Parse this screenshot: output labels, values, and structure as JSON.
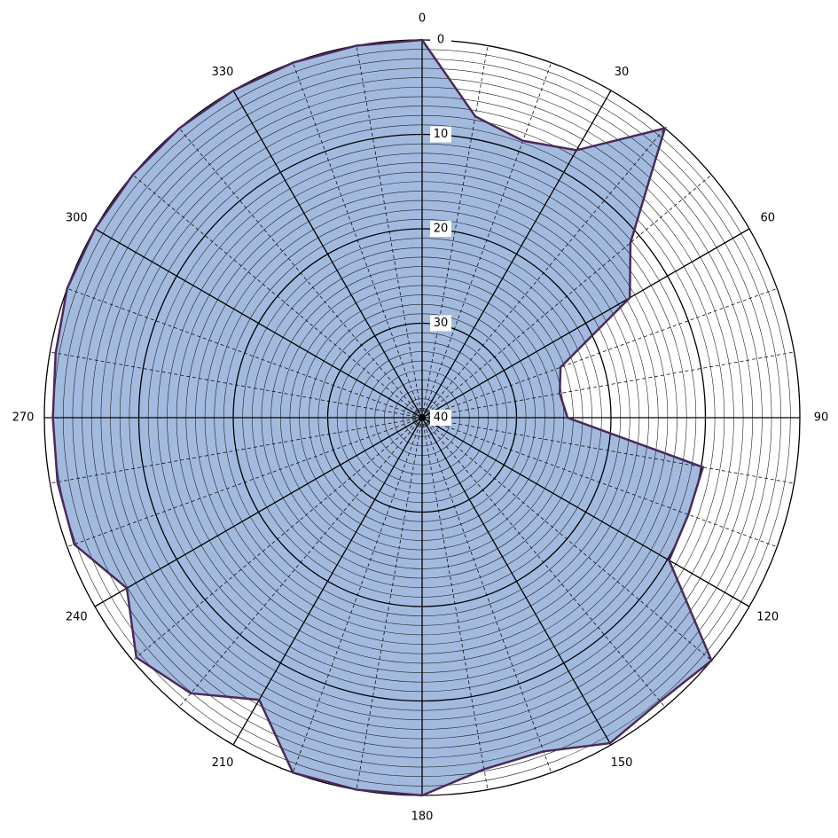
{
  "chart_data": {
    "type": "polar",
    "x": [
      0,
      10,
      20,
      30,
      40,
      50,
      60,
      70,
      80,
      90,
      100,
      110,
      120,
      130,
      140,
      150,
      160,
      170,
      180,
      190,
      200,
      210,
      220,
      230,
      240,
      250,
      260,
      270,
      280,
      290,
      300,
      310,
      320,
      330,
      340,
      350
    ],
    "series": [
      {
        "color": "#a3badf",
        "values": [
          0,
          7.6,
          8.8,
          7.3,
          0,
          11.2,
          14.6,
          24.4,
          25.2,
          24.6,
          9.8,
          10,
          9.8,
          0,
          0.8,
          0.2,
          2.4,
          2.2,
          0,
          0,
          0,
          5.5,
          1.9,
          0.5,
          3.9,
          0.8,
          0.8,
          0.9,
          0.6,
          0,
          0,
          0,
          0,
          0,
          0,
          0
        ]
      }
    ],
    "xticks": [
      0,
      30,
      60,
      90,
      120,
      150,
      180,
      210,
      240,
      270,
      300,
      330
    ],
    "rlim": [
      0,
      40
    ],
    "rticks": [
      0,
      10,
      20,
      30,
      40
    ],
    "radial_reversed": true,
    "grid": true
  }
}
